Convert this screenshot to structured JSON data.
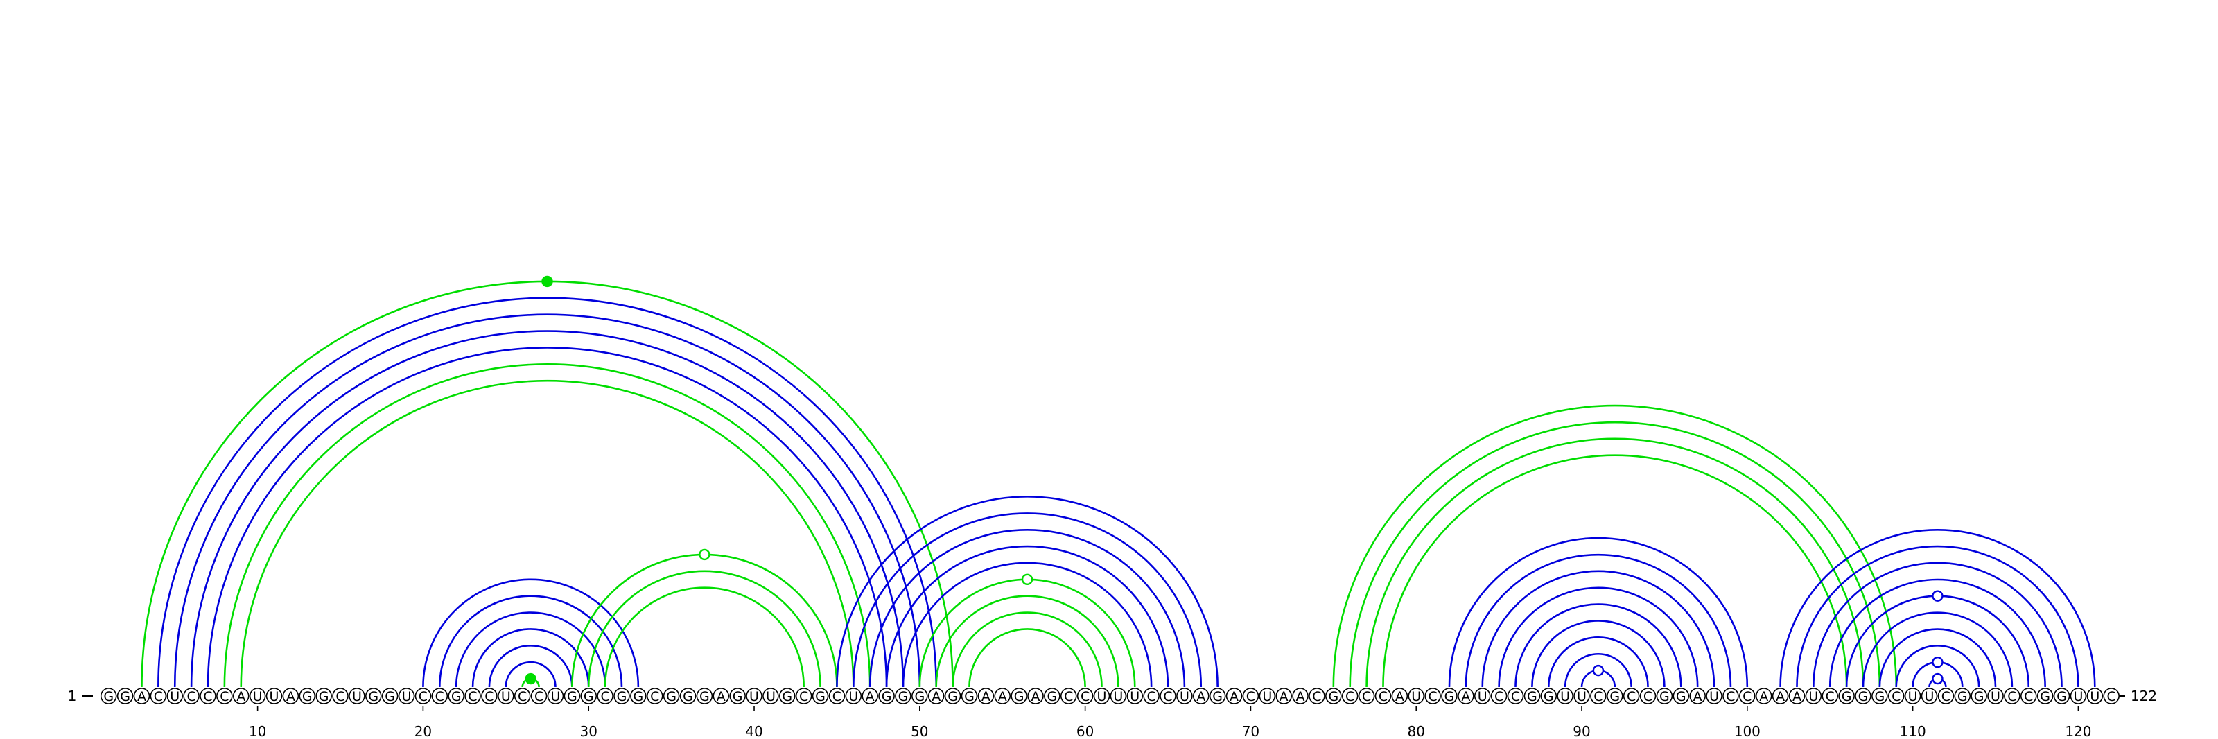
{
  "sequence": "GGACUCCCAUUAGGCUGGUCCGCCUCCUGGCGGCGGGAGUUGCGCUAGGGAGGAAGAGCCUUUCCUAGACUAACGCCCAUCGAUCCGGUUCGCCGGAUCCAAAUCGGGCUUCGGUCCGGUUC",
  "start_label": "1",
  "end_label": "122",
  "ticks": [
    "10",
    "20",
    "30",
    "40",
    "50",
    "60",
    "70",
    "80",
    "90",
    "100",
    "110",
    "120"
  ],
  "colors": {
    "blue": "#0000dd",
    "green": "#00dd00"
  },
  "arc_groups": [
    {
      "color": "green",
      "pairs": [
        [
          3,
          52
        ]
      ],
      "marker": "filled"
    },
    {
      "color": "blue",
      "pairs": [
        [
          4,
          51
        ],
        [
          5,
          50
        ],
        [
          6,
          49
        ]
      ]
    },
    {
      "color": "blue",
      "pairs": [
        [
          7,
          48
        ]
      ]
    },
    {
      "color": "green",
      "pairs": [
        [
          8,
          47
        ],
        [
          9,
          46
        ]
      ]
    },
    {
      "color": "blue",
      "pairs": [
        [
          20,
          33
        ],
        [
          21,
          32
        ],
        [
          22,
          31
        ],
        [
          23,
          30
        ],
        [
          24,
          29
        ],
        [
          25,
          28
        ]
      ]
    },
    {
      "color": "green",
      "pairs": [
        [
          26,
          27
        ]
      ],
      "marker": "filled"
    },
    {
      "color": "green",
      "pairs": [
        [
          29,
          45
        ]
      ],
      "marker": "open"
    },
    {
      "color": "green",
      "pairs": [
        [
          30,
          44
        ],
        [
          31,
          43
        ]
      ]
    },
    {
      "color": "blue",
      "pairs": [
        [
          45,
          68
        ],
        [
          46,
          67
        ],
        [
          47,
          66
        ],
        [
          48,
          65
        ],
        [
          49,
          64
        ]
      ]
    },
    {
      "color": "green",
      "pairs": [
        [
          50,
          63
        ]
      ],
      "marker": "open"
    },
    {
      "color": "green",
      "pairs": [
        [
          51,
          62
        ],
        [
          52,
          61
        ],
        [
          53,
          60
        ]
      ]
    },
    {
      "color": "green",
      "pairs": [
        [
          75,
          109
        ],
        [
          76,
          108
        ],
        [
          77,
          107
        ],
        [
          78,
          106
        ]
      ]
    },
    {
      "color": "blue",
      "pairs": [
        [
          82,
          100
        ],
        [
          83,
          99
        ],
        [
          84,
          98
        ],
        [
          85,
          97
        ],
        [
          86,
          96
        ],
        [
          87,
          95
        ],
        [
          88,
          94
        ],
        [
          89,
          93
        ]
      ]
    },
    {
      "color": "blue",
      "pairs": [
        [
          90,
          92
        ]
      ],
      "marker": "open"
    },
    {
      "color": "blue",
      "pairs": [
        [
          102,
          121
        ],
        [
          103,
          120
        ],
        [
          104,
          119
        ],
        [
          105,
          118
        ]
      ]
    },
    {
      "color": "blue",
      "pairs": [
        [
          106,
          117
        ]
      ],
      "marker": "open"
    },
    {
      "color": "blue",
      "pairs": [
        [
          107,
          116
        ],
        [
          108,
          115
        ],
        [
          109,
          114
        ]
      ]
    },
    {
      "color": "blue",
      "pairs": [
        [
          110,
          113
        ]
      ],
      "marker": "open"
    },
    {
      "color": "blue",
      "pairs": [
        [
          111,
          112
        ]
      ],
      "marker": "open"
    }
  ]
}
